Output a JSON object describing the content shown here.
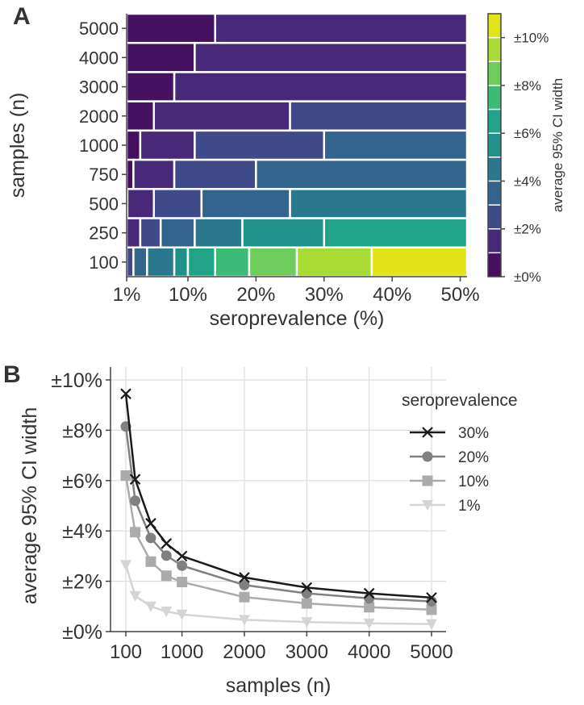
{
  "chart_data": [
    {
      "panel_label": "A",
      "type": "heatmap",
      "xlabel": "seroprevalence (%)",
      "ylabel": "samples (n)",
      "x_range_pct": [
        1,
        51
      ],
      "xticks": [
        {
          "v": 1,
          "label": "1%"
        },
        {
          "v": 10,
          "label": "10%"
        },
        {
          "v": 20,
          "label": "20%"
        },
        {
          "v": 30,
          "label": "30%"
        },
        {
          "v": 40,
          "label": "40%"
        },
        {
          "v": 50,
          "label": "50%"
        }
      ],
      "rows": [
        "5000",
        "4000",
        "3000",
        "2000",
        "1000",
        "750",
        "500",
        "250",
        "100"
      ],
      "level_colors": [
        "#45105f",
        "#482878",
        "#3e4a89",
        "#32648e",
        "#2a788e",
        "#21918c",
        "#20a386",
        "#3bbb75",
        "#6ccd5a",
        "#a8db34",
        "#e2e418"
      ],
      "regions": {
        "5000": [
          [
            1,
            14,
            0
          ],
          [
            14,
            51,
            1
          ]
        ],
        "4000": [
          [
            1,
            11,
            0
          ],
          [
            11,
            51,
            1
          ]
        ],
        "3000": [
          [
            1,
            8,
            0
          ],
          [
            8,
            51,
            1
          ]
        ],
        "2000": [
          [
            1,
            5,
            0
          ],
          [
            5,
            25,
            1
          ],
          [
            25,
            51,
            2
          ]
        ],
        "1000": [
          [
            1,
            3,
            0
          ],
          [
            3,
            11,
            1
          ],
          [
            11,
            30,
            2
          ],
          [
            30,
            51,
            3
          ]
        ],
        "750": [
          [
            1,
            2,
            0
          ],
          [
            2,
            8,
            1
          ],
          [
            8,
            20,
            2
          ],
          [
            20,
            51,
            3
          ]
        ],
        "500": [
          [
            1,
            1.1,
            0
          ],
          [
            1.1,
            5,
            1
          ],
          [
            5,
            12,
            2
          ],
          [
            12,
            25,
            3
          ],
          [
            25,
            51,
            4
          ]
        ],
        "250": [
          [
            1,
            3,
            1
          ],
          [
            3,
            6,
            2
          ],
          [
            6,
            11,
            3
          ],
          [
            11,
            18,
            4
          ],
          [
            18,
            30,
            5
          ],
          [
            30,
            51,
            6
          ]
        ],
        "100": [
          [
            1,
            2,
            2
          ],
          [
            2,
            4,
            3
          ],
          [
            4,
            8,
            4
          ],
          [
            8,
            10,
            5
          ],
          [
            10,
            14,
            6
          ],
          [
            14,
            19,
            7
          ],
          [
            19,
            26,
            8
          ],
          [
            26,
            37,
            9
          ],
          [
            37,
            51,
            10
          ]
        ]
      },
      "colorbar": {
        "label": "average 95% CI width",
        "range": [
          0,
          11
        ],
        "ticks": [
          {
            "v": 0,
            "label": "±0%"
          },
          {
            "v": 2,
            "label": "±2%"
          },
          {
            "v": 4,
            "label": "±4%"
          },
          {
            "v": 6,
            "label": "±6%"
          },
          {
            "v": 8,
            "label": "±8%"
          },
          {
            "v": 10,
            "label": "±10%"
          }
        ]
      }
    },
    {
      "panel_label": "B",
      "type": "line",
      "xlabel": "samples (n)",
      "ylabel": "average 95% CI width",
      "xlim": [
        100,
        5000
      ],
      "ylim": [
        0,
        10
      ],
      "grid": true,
      "xticks": [
        {
          "v": 100,
          "label": "100"
        },
        {
          "v": 1000,
          "label": "1000"
        },
        {
          "v": 2000,
          "label": "2000"
        },
        {
          "v": 3000,
          "label": "3000"
        },
        {
          "v": 4000,
          "label": "4000"
        },
        {
          "v": 5000,
          "label": "5000"
        }
      ],
      "yticks": [
        {
          "v": 0,
          "label": "±0%"
        },
        {
          "v": 2,
          "label": "±2%"
        },
        {
          "v": 4,
          "label": "±4%"
        },
        {
          "v": 6,
          "label": "±6%"
        },
        {
          "v": 8,
          "label": "±8%"
        },
        {
          "v": 10,
          "label": "±10%"
        }
      ],
      "x": [
        100,
        250,
        500,
        750,
        1000,
        2000,
        3000,
        4000,
        5000
      ],
      "legend_title": "seroprevalence",
      "legend_position": "top-right",
      "series": [
        {
          "name": "30%",
          "marker": "x",
          "color": "#1a1a1a",
          "values": [
            9.45,
            6.05,
            4.3,
            3.5,
            3.0,
            2.15,
            1.75,
            1.52,
            1.35
          ]
        },
        {
          "name": "20%",
          "marker": "circle",
          "color": "#808080",
          "values": [
            8.15,
            5.2,
            3.72,
            3.02,
            2.62,
            1.85,
            1.52,
            1.32,
            1.2
          ]
        },
        {
          "name": "10%",
          "marker": "square",
          "color": "#ababab",
          "values": [
            6.2,
            3.95,
            2.78,
            2.22,
            1.97,
            1.37,
            1.12,
            0.97,
            0.87
          ]
        },
        {
          "name": "1%",
          "marker": "triangle-down",
          "color": "#d4d4d4",
          "values": [
            2.65,
            1.42,
            1.0,
            0.8,
            0.68,
            0.47,
            0.38,
            0.33,
            0.3
          ]
        }
      ]
    }
  ]
}
